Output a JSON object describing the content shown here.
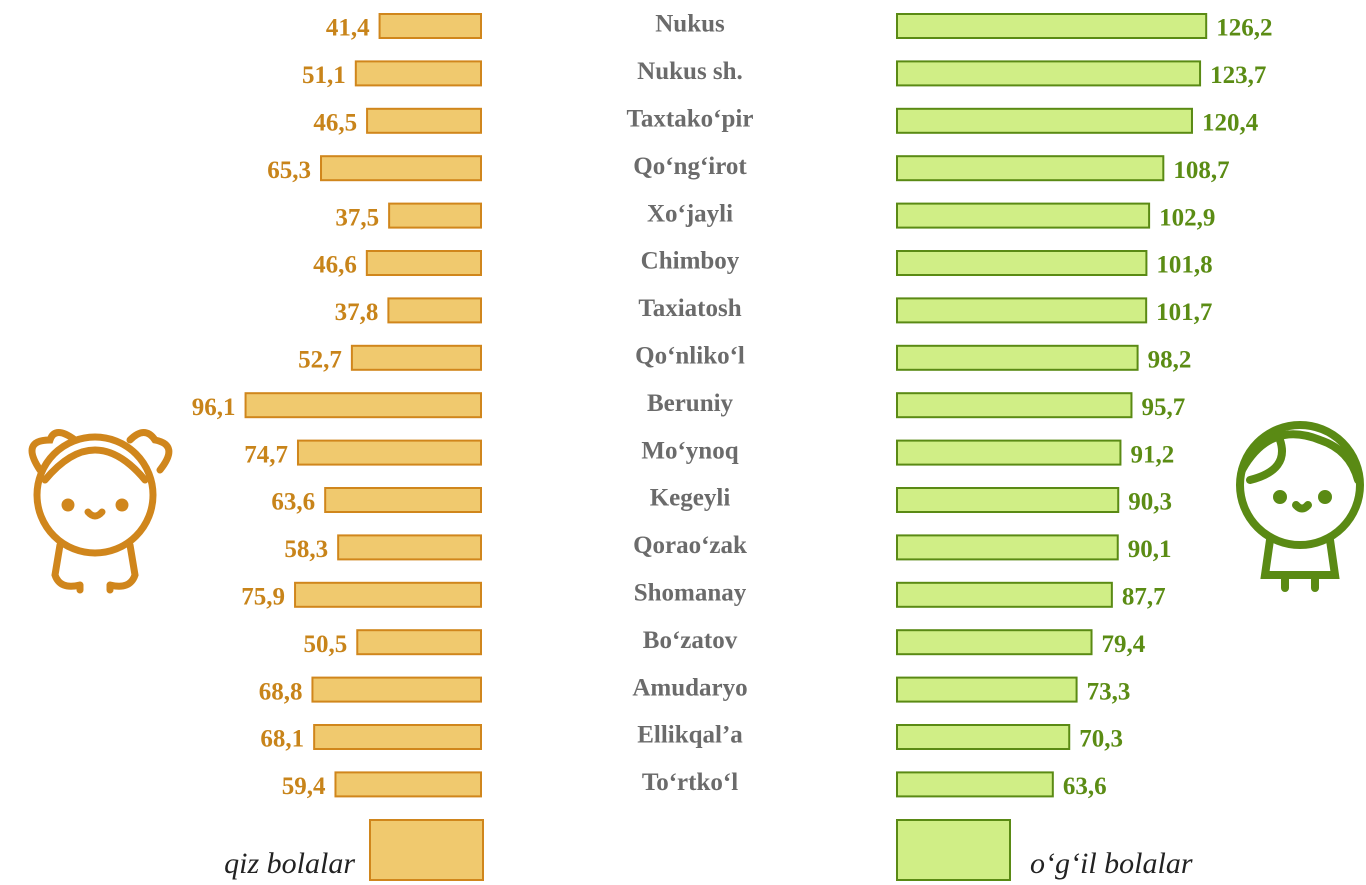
{
  "chart_data": {
    "type": "bar",
    "categories": [
      "Nukus",
      "Nukus sh.",
      "Taxtako‘pir",
      "Qo‘ng‘irot",
      "Xo‘jayli",
      "Chimboy",
      "Taxiatosh",
      "Qo‘nliko‘l",
      "Beruniy",
      "Mo‘ynoq",
      "Kegeyli",
      "Qorao‘zak",
      "Shomanay",
      "Bo‘zatov",
      "Amudaryo",
      "Ellikqal’a",
      "To‘rtko‘l"
    ],
    "series": [
      {
        "name": "qiz bolalar",
        "color": "#f0c96e",
        "values": [
          41.4,
          51.1,
          46.5,
          65.3,
          37.5,
          46.6,
          37.8,
          52.7,
          96.1,
          74.7,
          63.6,
          58.3,
          75.9,
          50.5,
          68.8,
          68.1,
          59.4
        ],
        "value_labels": [
          "41,4",
          "51,1",
          "46,5",
          "65,3",
          "37,5",
          "46,6",
          "37,8",
          "52,7",
          "96,1",
          "74,7",
          "63,6",
          "58,3",
          "75,9",
          "50,5",
          "68,8",
          "68,1",
          "59,4"
        ]
      },
      {
        "name": "o‘g‘il bolalar",
        "color": "#d0ee86",
        "values": [
          126.2,
          123.7,
          120.4,
          108.7,
          102.9,
          101.8,
          101.7,
          98.2,
          95.7,
          91.2,
          90.3,
          90.1,
          87.7,
          79.4,
          73.3,
          70.3,
          63.6
        ],
        "value_labels": [
          "126,2",
          "123,7",
          "120,4",
          "108,7",
          "102,9",
          "101,8",
          "101,7",
          "98,2",
          "95,7",
          "91,2",
          "90,3",
          "90,1",
          "87,7",
          "79,4",
          "73,3",
          "70,3",
          "63,6"
        ]
      }
    ]
  }
}
